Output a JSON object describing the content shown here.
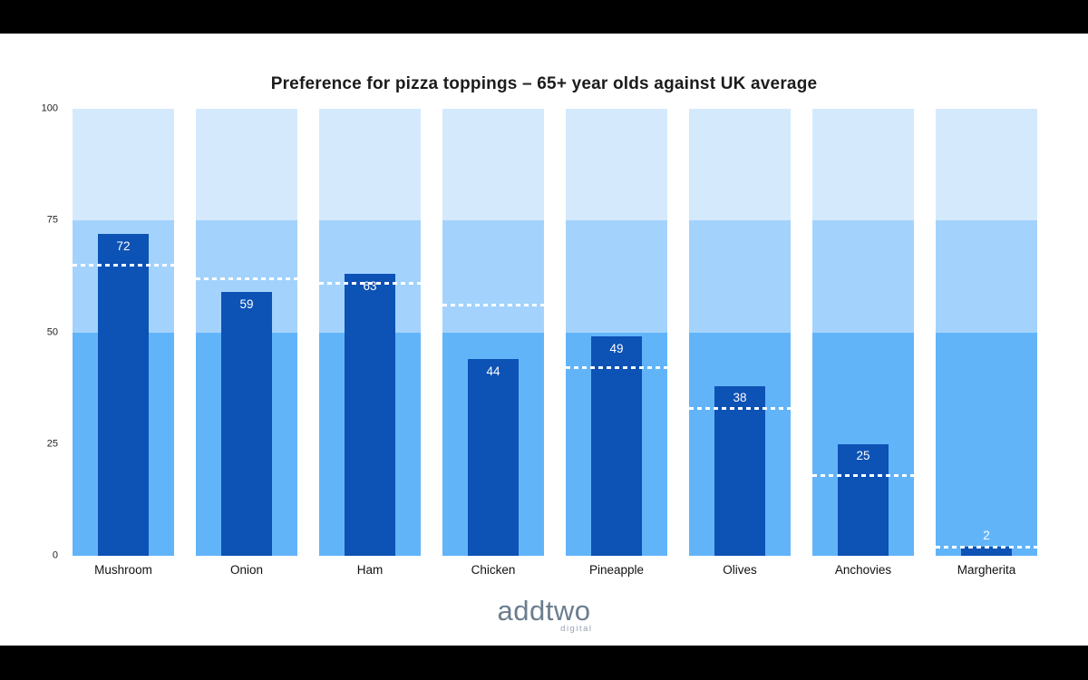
{
  "title": "Preference for pizza toppings – 65+ year olds against UK average",
  "chart_data": {
    "type": "bar",
    "title": "Preference for pizza toppings – 65+ year olds against UK average",
    "categories": [
      "Mushroom",
      "Onion",
      "Ham",
      "Chicken",
      "Pineapple",
      "Olives",
      "Anchovies",
      "Margherita"
    ],
    "series": [
      {
        "name": "65+ year olds",
        "values": [
          72,
          59,
          63,
          44,
          49,
          38,
          25,
          2
        ]
      },
      {
        "name": "UK average",
        "values": [
          65,
          62,
          61,
          56,
          42,
          33,
          18,
          2
        ]
      }
    ],
    "ylim": [
      0,
      100
    ],
    "yticks": [
      0,
      25,
      50,
      75,
      100
    ],
    "bands": [
      {
        "range": [
          0,
          50
        ],
        "color": "#62b4f9"
      },
      {
        "range": [
          50,
          75
        ],
        "color": "#a3d3fc"
      },
      {
        "range": [
          75,
          100
        ],
        "color": "#d5e9fd"
      }
    ],
    "colors": {
      "bar": "#0d52b5",
      "band_low": "#62b4f9",
      "band_mid": "#a3d3fc",
      "band_high": "#d5e9fd",
      "average_line": "#ffffff",
      "value_label": "#ffffff"
    },
    "grid": false,
    "legend": "none",
    "xlabel": "",
    "ylabel": ""
  },
  "logo": {
    "brand": "addtwo",
    "sub": "digital"
  }
}
